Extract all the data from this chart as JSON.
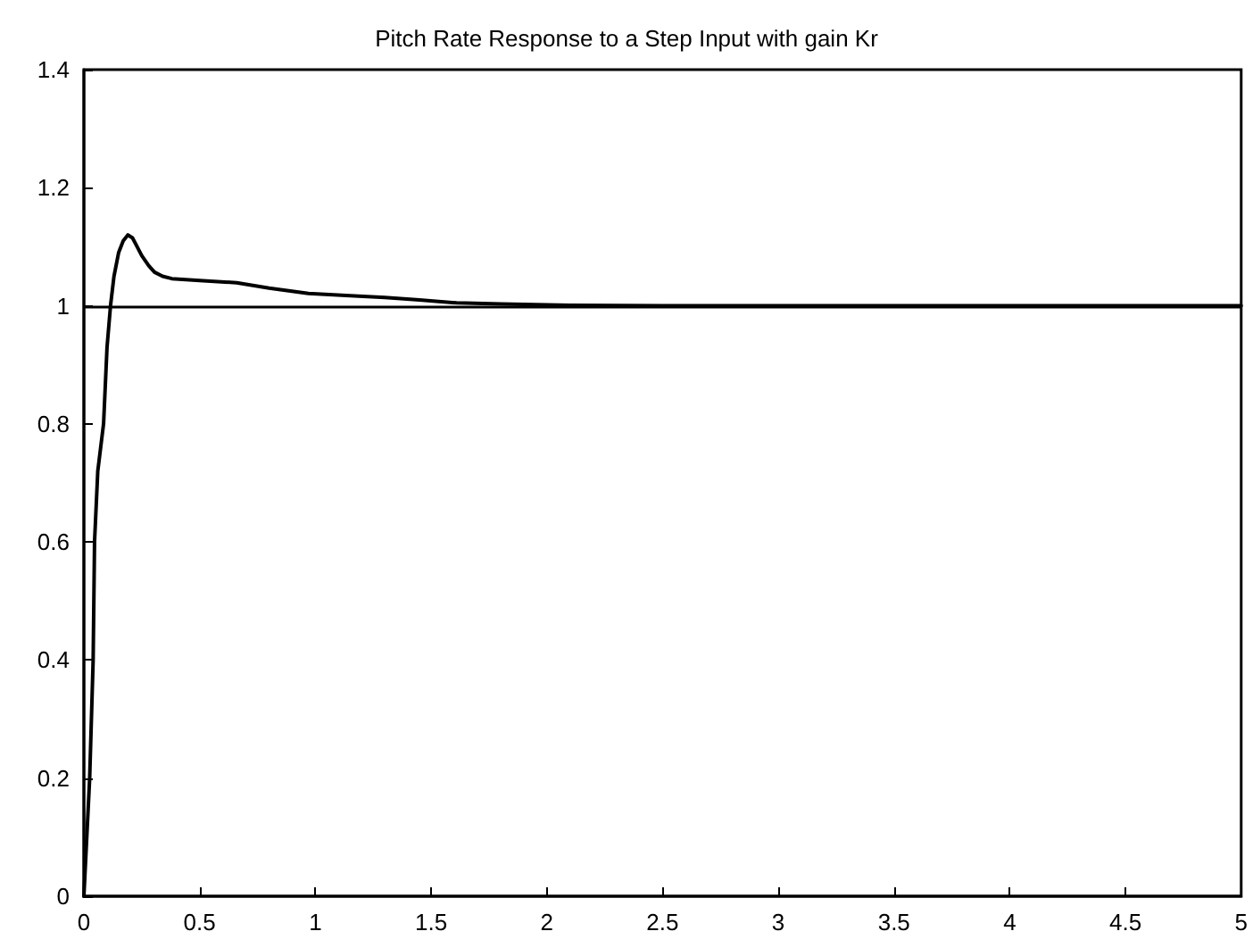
{
  "chart_data": {
    "type": "line",
    "title": "Pitch Rate Response to a Step Input with gain Kr",
    "series": [
      {
        "color": "#000000",
        "x": [
          0,
          0.01,
          0.025,
          0.04,
          0.046,
          0.06,
          0.085,
          0.1,
          0.115,
          0.13,
          0.15,
          0.17,
          0.19,
          0.21,
          0.23,
          0.25,
          0.28,
          0.305,
          0.34,
          0.38,
          0.5,
          0.66,
          0.8,
          0.97,
          1.15,
          1.3,
          1.45,
          1.61,
          1.8,
          2.1,
          2.5,
          3,
          4,
          5
        ],
        "values": [
          0,
          0.08,
          0.2,
          0.4,
          0.6,
          0.72,
          0.8,
          0.93,
          1,
          1.05,
          1.09,
          1.11,
          1.12,
          1.115,
          1.1,
          1.085,
          1.068,
          1.057,
          1.05,
          1.046,
          1.043,
          1.039,
          1.03,
          1.021,
          1.017,
          1.014,
          1.01,
          1.005,
          1.003,
          1.001,
          1,
          1,
          1,
          1
        ]
      }
    ],
    "ref_lines": [
      {
        "axis": "y",
        "value": 1,
        "color": "#000000"
      }
    ],
    "xlim": [
      0,
      5
    ],
    "xticks": [
      0,
      0.5,
      1,
      1.5,
      2,
      2.5,
      3,
      3.5,
      4,
      4.5,
      5
    ],
    "ylim": [
      0,
      1.4
    ],
    "yticks": [
      0,
      0.2,
      0.4,
      0.6,
      0.8,
      1,
      1.2,
      1.4
    ],
    "grid": false,
    "marker": "none",
    "line_style": "solid"
  }
}
